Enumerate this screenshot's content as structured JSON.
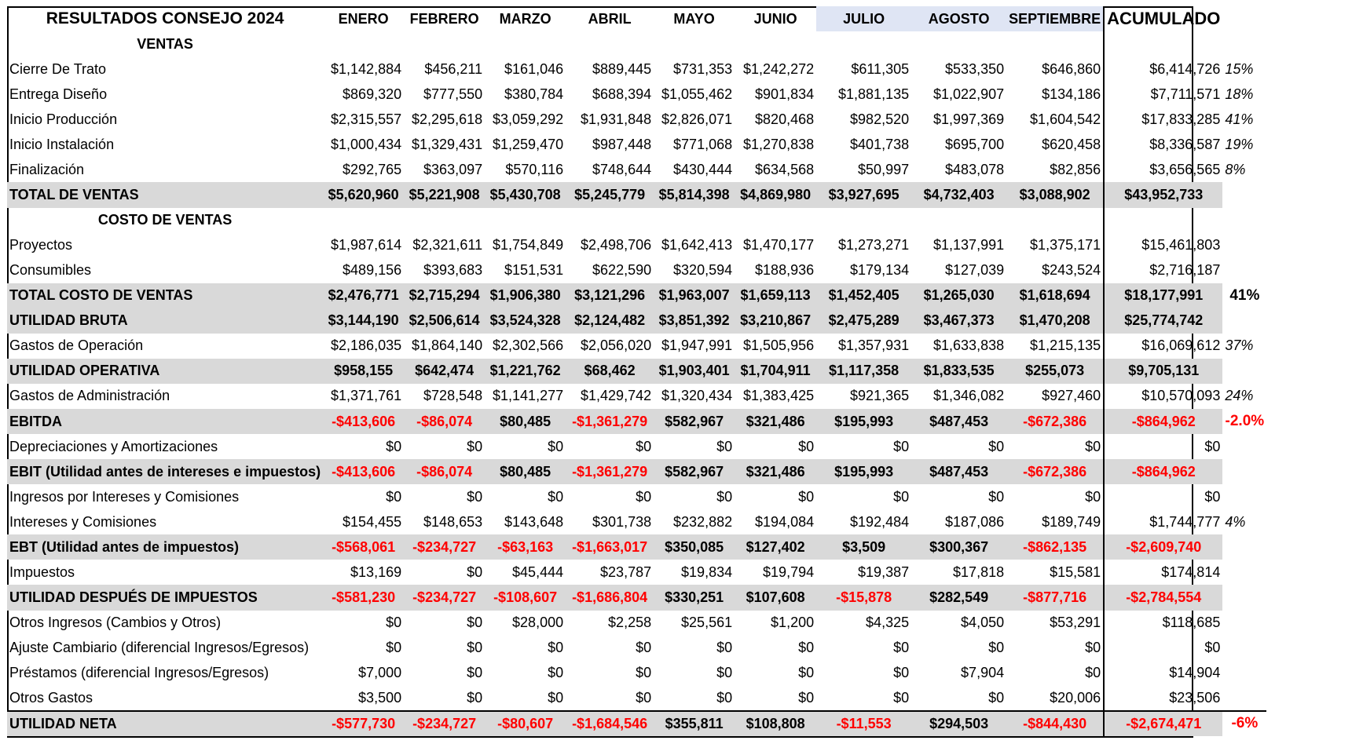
{
  "title": "RESULTADOS CONSEJO 2024",
  "months": [
    "ENERO",
    "FEBRERO",
    "MARZO",
    "ABRIL",
    "MAYO",
    "JUNIO",
    "JULIO",
    "AGOSTO",
    "SEPTIEMBRE"
  ],
  "acumulado": "ACUMULADO",
  "rows": [
    {
      "type": "section",
      "label": "VENTAS"
    },
    {
      "type": "line",
      "label": "Cierre De Trato",
      "values": [
        "$1,142,884",
        "$456,211",
        "$161,046",
        "$889,445",
        "$731,353",
        "$1,242,272",
        "$611,305",
        "$533,350",
        "$646,860"
      ],
      "acum": "$6,414,726",
      "pct": "15%"
    },
    {
      "type": "line",
      "label": "Entrega Diseño",
      "values": [
        "$869,320",
        "$777,550",
        "$380,784",
        "$688,394",
        "$1,055,462",
        "$901,834",
        "$1,881,135",
        "$1,022,907",
        "$134,186"
      ],
      "acum": "$7,711,571",
      "pct": "18%"
    },
    {
      "type": "line",
      "label": "Inicio Producción",
      "values": [
        "$2,315,557",
        "$2,295,618",
        "$3,059,292",
        "$1,931,848",
        "$2,826,071",
        "$820,468",
        "$982,520",
        "$1,997,369",
        "$1,604,542"
      ],
      "acum": "$17,833,285",
      "pct": "41%"
    },
    {
      "type": "line",
      "label": "Inicio Instalación",
      "values": [
        "$1,000,434",
        "$1,329,431",
        "$1,259,470",
        "$987,448",
        "$771,068",
        "$1,270,838",
        "$401,738",
        "$695,700",
        "$620,458"
      ],
      "acum": "$8,336,587",
      "pct": "19%"
    },
    {
      "type": "line",
      "label": "Finalización",
      "values": [
        "$292,765",
        "$363,097",
        "$570,116",
        "$748,644",
        "$430,444",
        "$634,568",
        "$50,997",
        "$483,078",
        "$82,856"
      ],
      "acum": "$3,656,565",
      "pct": "8%"
    },
    {
      "type": "total",
      "label": "TOTAL DE VENTAS",
      "values": [
        "$5,620,960",
        "$5,221,908",
        "$5,430,708",
        "$5,245,779",
        "$5,814,398",
        "$4,869,980",
        "$3,927,695",
        "$4,732,403",
        "$3,088,902"
      ],
      "acum": "$43,952,733",
      "pct": ""
    },
    {
      "type": "section",
      "label": "COSTO DE VENTAS"
    },
    {
      "type": "line",
      "label": "Proyectos",
      "values": [
        "$1,987,614",
        "$2,321,611",
        "$1,754,849",
        "$2,498,706",
        "$1,642,413",
        "$1,470,177",
        "$1,273,271",
        "$1,137,991",
        "$1,375,171"
      ],
      "acum": "$15,461,803",
      "pct": ""
    },
    {
      "type": "line",
      "label": "Consumibles",
      "values": [
        "$489,156",
        "$393,683",
        "$151,531",
        "$622,590",
        "$320,594",
        "$188,936",
        "$179,134",
        "$127,039",
        "$243,524"
      ],
      "acum": "$2,716,187",
      "pct": ""
    },
    {
      "type": "total",
      "label": "TOTAL COSTO DE VENTAS",
      "values": [
        "$2,476,771",
        "$2,715,294",
        "$1,906,380",
        "$3,121,296",
        "$1,963,007",
        "$1,659,113",
        "$1,452,405",
        "$1,265,030",
        "$1,618,694"
      ],
      "acum": "$18,177,991",
      "pct": "41%",
      "pct_big": true
    },
    {
      "type": "total",
      "label": "UTILIDAD BRUTA",
      "values": [
        "$3,144,190",
        "$2,506,614",
        "$3,524,328",
        "$2,124,482",
        "$3,851,392",
        "$3,210,867",
        "$2,475,289",
        "$3,467,373",
        "$1,470,208"
      ],
      "acum": "$25,774,742",
      "pct": ""
    },
    {
      "type": "line",
      "label": "Gastos de Operación",
      "values": [
        "$2,186,035",
        "$1,864,140",
        "$2,302,566",
        "$2,056,020",
        "$1,947,991",
        "$1,505,956",
        "$1,357,931",
        "$1,633,838",
        "$1,215,135"
      ],
      "acum": "$16,069,612",
      "pct": "37%"
    },
    {
      "type": "total",
      "label": "UTILIDAD OPERATIVA",
      "values": [
        "$958,155",
        "$642,474",
        "$1,221,762",
        "$68,462",
        "$1,903,401",
        "$1,704,911",
        "$1,117,358",
        "$1,833,535",
        "$255,073"
      ],
      "acum": "$9,705,131",
      "pct": ""
    },
    {
      "type": "line",
      "label": "Gastos de Administración",
      "values": [
        "$1,371,761",
        "$728,548",
        "$1,141,277",
        "$1,429,742",
        "$1,320,434",
        "$1,383,425",
        "$921,365",
        "$1,346,082",
        "$927,460"
      ],
      "acum": "$10,570,093",
      "pct": "24%"
    },
    {
      "type": "total",
      "label": "EBITDA",
      "values": [
        "-$413,606",
        "-$86,074",
        "$80,485",
        "-$1,361,279",
        "$582,967",
        "$321,486",
        "$195,993",
        "$487,453",
        "-$672,386"
      ],
      "acum": "-$864,962",
      "pct": "-2.0%",
      "pct_big": true
    },
    {
      "type": "line",
      "label": "Depreciaciones y Amortizaciones",
      "values": [
        "$0",
        "$0",
        "$0",
        "$0",
        "$0",
        "$0",
        "$0",
        "$0",
        "$0"
      ],
      "acum": "$0",
      "pct": ""
    },
    {
      "type": "total",
      "label": "EBIT (Utilidad antes de intereses e impuestos)",
      "values": [
        "-$413,606",
        "-$86,074",
        "$80,485",
        "-$1,361,279",
        "$582,967",
        "$321,486",
        "$195,993",
        "$487,453",
        "-$672,386"
      ],
      "acum": "-$864,962",
      "pct": ""
    },
    {
      "type": "line",
      "label": "Ingresos por Intereses y Comisiones",
      "values": [
        "$0",
        "$0",
        "$0",
        "$0",
        "$0",
        "$0",
        "$0",
        "$0",
        "$0"
      ],
      "acum": "$0",
      "pct": ""
    },
    {
      "type": "line",
      "label": "Intereses y Comisiones",
      "values": [
        "$154,455",
        "$148,653",
        "$143,648",
        "$301,738",
        "$232,882",
        "$194,084",
        "$192,484",
        "$187,086",
        "$189,749"
      ],
      "acum": "$1,744,777",
      "pct": "4%"
    },
    {
      "type": "total",
      "label": "EBT (Utilidad antes de impuestos)",
      "values": [
        "-$568,061",
        "-$234,727",
        "-$63,163",
        "-$1,663,017",
        "$350,085",
        "$127,402",
        "$3,509",
        "$300,367",
        "-$862,135"
      ],
      "acum": "-$2,609,740",
      "pct": ""
    },
    {
      "type": "line",
      "label": "Impuestos",
      "values": [
        "$13,169",
        "$0",
        "$45,444",
        "$23,787",
        "$19,834",
        "$19,794",
        "$19,387",
        "$17,818",
        "$15,581"
      ],
      "acum": "$174,814",
      "pct": ""
    },
    {
      "type": "total",
      "label": "UTILIDAD DESPUÉS DE IMPUESTOS",
      "values": [
        "-$581,230",
        "-$234,727",
        "-$108,607",
        "-$1,686,804",
        "$330,251",
        "$107,608",
        "-$15,878",
        "$282,549",
        "-$877,716"
      ],
      "acum": "-$2,784,554",
      "pct": ""
    },
    {
      "type": "line",
      "label": "Otros Ingresos (Cambios y Otros)",
      "values": [
        "$0",
        "$0",
        "$28,000",
        "$2,258",
        "$25,561",
        "$1,200",
        "$4,325",
        "$4,050",
        "$53,291"
      ],
      "acum": "$118,685",
      "pct": ""
    },
    {
      "type": "line",
      "label": "Ajuste Cambiario (diferencial Ingresos/Egresos)",
      "values": [
        "$0",
        "$0",
        "$0",
        "$0",
        "$0",
        "$0",
        "$0",
        "$0",
        "$0"
      ],
      "acum": "$0",
      "pct": ""
    },
    {
      "type": "line",
      "label": "Préstamos (diferencial Ingresos/Egresos)",
      "values": [
        "$7,000",
        "$0",
        "$0",
        "$0",
        "$0",
        "$0",
        "$0",
        "$7,904",
        "$0"
      ],
      "acum": "$14,904",
      "pct": ""
    },
    {
      "type": "line",
      "label": "Otros Gastos",
      "values": [
        "$3,500",
        "$0",
        "$0",
        "$0",
        "$0",
        "$0",
        "$0",
        "$0",
        "$20,006"
      ],
      "acum": "$23,506",
      "pct": ""
    },
    {
      "type": "total",
      "label": "UTILIDAD NETA",
      "values": [
        "-$577,730",
        "-$234,727",
        "-$80,607",
        "-$1,684,546",
        "$355,811",
        "$108,808",
        "-$11,553",
        "$294,503",
        "-$844,430"
      ],
      "acum": "-$2,674,471",
      "pct": "-6%",
      "pct_big": true,
      "last": true
    }
  ]
}
